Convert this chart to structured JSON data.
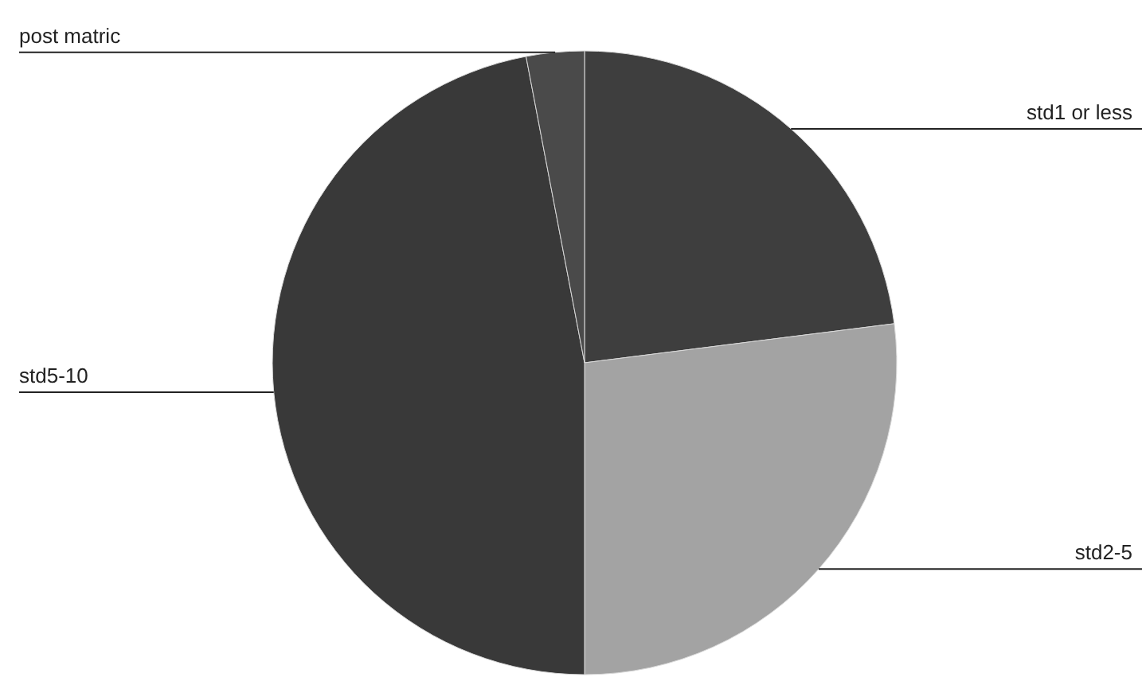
{
  "chart_data": {
    "type": "pie",
    "categories": [
      "std1 or less",
      "std2-5",
      "std5-10",
      "post matric"
    ],
    "values": [
      23,
      27,
      47,
      3
    ],
    "colors": [
      "#3e3e3e",
      "#a3a3a3",
      "#393939",
      "#4a4a4a"
    ]
  }
}
